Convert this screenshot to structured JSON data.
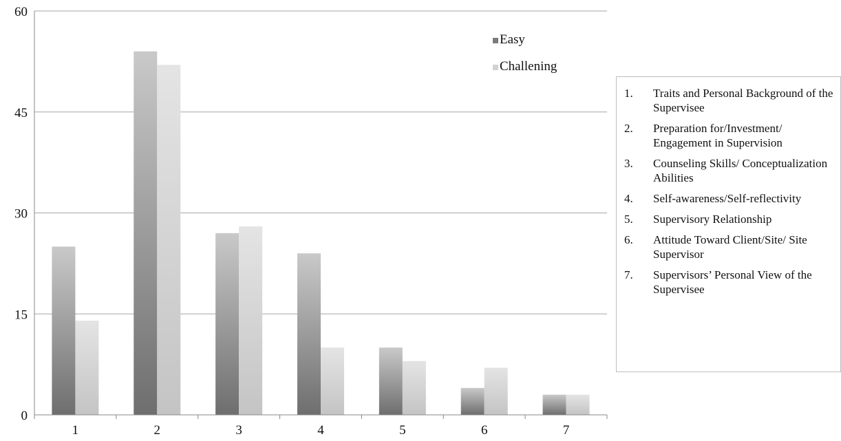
{
  "chart_data": {
    "type": "bar",
    "categories": [
      "1",
      "2",
      "3",
      "4",
      "5",
      "6",
      "7"
    ],
    "series": [
      {
        "name": "Easy",
        "values": [
          25,
          54,
          27,
          24,
          10,
          4,
          3
        ]
      },
      {
        "name": "Challening",
        "values": [
          14,
          52,
          28,
          10,
          8,
          7,
          3
        ]
      }
    ],
    "title": "",
    "xlabel": "",
    "ylabel": "",
    "ylim": [
      0,
      60
    ],
    "yticks": [
      0,
      15,
      30,
      45,
      60
    ],
    "grid": true,
    "legend_position": "top-right",
    "colors": {
      "Easy": "#7a7a7a",
      "Challening": "#d2d2d2",
      "gridline": "#a6a6a6",
      "axis": "#888888"
    }
  },
  "category_key": {
    "items": [
      {
        "number": "1.",
        "text": "Traits and Personal Background of the Supervisee"
      },
      {
        "number": "2.",
        "text": "Preparation for/Investment/ Engagement in Supervision"
      },
      {
        "number": "3.",
        "text": "Counseling Skills/ Conceptualization Abilities"
      },
      {
        "number": "4.",
        "text": "Self-awareness/Self-reflectivity"
      },
      {
        "number": "5.",
        "text": "Supervisory Relationship"
      },
      {
        "number": "6.",
        "text": "Attitude Toward Client/Site/ Site Supervisor"
      },
      {
        "number": "7.",
        "text": "Supervisors’ Personal View of the Supervisee"
      }
    ]
  }
}
